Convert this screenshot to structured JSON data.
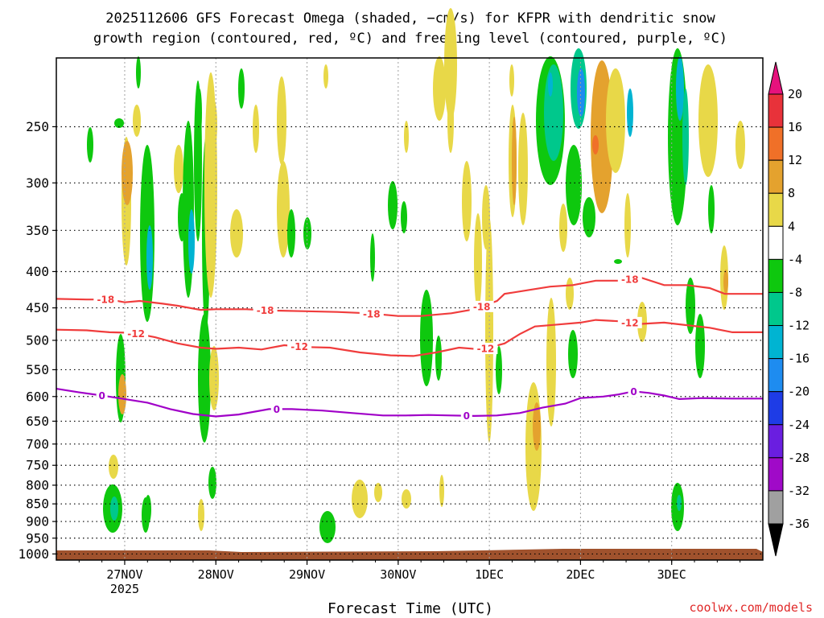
{
  "chart_data": {
    "type": "heatmap",
    "title_line1": "2025112606 GFS Forecast Omega (shaded, −cm/s) for KFPR with dendritic snow",
    "title_line2": "growth region (contoured, red, ºC) and freezing level (contoured, purple, ºC)",
    "xlabel": "Forecast Time (UTC)",
    "credit": "coolwx.com/models",
    "x_start_hours": 0,
    "x_end_hours": 186,
    "x_ticks": [
      {
        "hours": 18,
        "label": "27NOV",
        "sub": "2025"
      },
      {
        "hours": 42,
        "label": "28NOV",
        "sub": ""
      },
      {
        "hours": 66,
        "label": "29NOV",
        "sub": ""
      },
      {
        "hours": 90,
        "label": "30NOV",
        "sub": ""
      },
      {
        "hours": 114,
        "label": "1DEC",
        "sub": ""
      },
      {
        "hours": 138,
        "label": "2DEC",
        "sub": ""
      },
      {
        "hours": 162,
        "label": "3DEC",
        "sub": ""
      }
    ],
    "pressure_levels": [
      250,
      300,
      350,
      400,
      450,
      500,
      550,
      600,
      650,
      700,
      750,
      800,
      850,
      900,
      950,
      1000
    ],
    "pressure_labels": [
      "250",
      "300",
      "350",
      "400",
      "450",
      "500",
      "550",
      "600",
      "650",
      "700",
      "750",
      "800",
      "850",
      "900",
      "950",
      "1000"
    ],
    "p_top": 200,
    "p_bottom": 1020,
    "colorbar": {
      "labels": [
        "20",
        "16",
        "12",
        "8",
        "4",
        "-4",
        "-8",
        "-12",
        "-16",
        "-20",
        "-24",
        "-28",
        "-32",
        "-36"
      ],
      "bins": [
        {
          "lo": 16,
          "hi": 20,
          "color": "#e8323a"
        },
        {
          "lo": 12,
          "hi": 16,
          "color": "#f07028"
        },
        {
          "lo": 8,
          "hi": 12,
          "color": "#e4a22e"
        },
        {
          "lo": 4,
          "hi": 8,
          "color": "#e8d848"
        },
        {
          "lo": -4,
          "hi": 4,
          "color": "#ffffff"
        },
        {
          "lo": -8,
          "hi": -4,
          "color": "#0ec80e"
        },
        {
          "lo": -12,
          "hi": -8,
          "color": "#00c88c"
        },
        {
          "lo": -16,
          "hi": -12,
          "color": "#00b4d2"
        },
        {
          "lo": -20,
          "hi": -16,
          "color": "#1e8cf0"
        },
        {
          "lo": -24,
          "hi": -20,
          "color": "#1e3ce6"
        },
        {
          "lo": -28,
          "hi": -24,
          "color": "#6a1ee0"
        },
        {
          "lo": -32,
          "hi": -28,
          "color": "#a00ac8"
        },
        {
          "lo": -36,
          "hi": -32,
          "color": "#a0a0a0"
        }
      ],
      "top_arrow_color": "#e6127d",
      "bottom_arrow_color": "#000000"
    },
    "series": [
      {
        "name": "-18C isotherm",
        "color": "#f03c3c",
        "label": "-18",
        "label_at_hours": [
          13,
          55,
          83,
          112,
          151
        ],
        "points": [
          [
            0,
            437
          ],
          [
            8,
            438
          ],
          [
            14,
            438
          ],
          [
            18,
            442
          ],
          [
            22,
            440
          ],
          [
            28,
            444
          ],
          [
            32,
            447
          ],
          [
            38,
            453
          ],
          [
            42,
            452
          ],
          [
            50,
            452
          ],
          [
            58,
            454
          ],
          [
            66,
            455
          ],
          [
            74,
            456
          ],
          [
            82,
            458
          ],
          [
            90,
            462
          ],
          [
            96,
            462
          ],
          [
            104,
            458
          ],
          [
            110,
            452
          ],
          [
            116,
            440
          ],
          [
            118,
            430
          ],
          [
            124,
            425
          ],
          [
            130,
            420
          ],
          [
            136,
            418
          ],
          [
            142,
            412
          ],
          [
            148,
            412
          ],
          [
            154,
            408
          ],
          [
            160,
            418
          ],
          [
            166,
            418
          ],
          [
            172,
            422
          ],
          [
            176,
            430
          ],
          [
            186,
            430
          ]
        ]
      },
      {
        "name": "-12C isotherm",
        "color": "#f03c3c",
        "label": "-12",
        "label_at_hours": [
          21,
          64,
          113,
          151
        ],
        "points": [
          [
            0,
            483
          ],
          [
            8,
            484
          ],
          [
            14,
            487
          ],
          [
            20,
            488
          ],
          [
            26,
            495
          ],
          [
            32,
            505
          ],
          [
            38,
            512
          ],
          [
            42,
            514
          ],
          [
            48,
            512
          ],
          [
            54,
            515
          ],
          [
            60,
            508
          ],
          [
            66,
            511
          ],
          [
            72,
            512
          ],
          [
            80,
            520
          ],
          [
            88,
            525
          ],
          [
            94,
            526
          ],
          [
            100,
            520
          ],
          [
            106,
            512
          ],
          [
            112,
            515
          ],
          [
            118,
            505
          ],
          [
            122,
            490
          ],
          [
            126,
            478
          ],
          [
            132,
            475
          ],
          [
            138,
            472
          ],
          [
            142,
            468
          ],
          [
            148,
            470
          ],
          [
            154,
            474
          ],
          [
            160,
            472
          ],
          [
            166,
            476
          ],
          [
            172,
            480
          ],
          [
            178,
            487
          ],
          [
            186,
            487
          ]
        ]
      },
      {
        "name": "0C freezing level",
        "color": "#a000c8",
        "label": "0",
        "label_at_hours": [
          12,
          58,
          108,
          152
        ],
        "points": [
          [
            0,
            585
          ],
          [
            6,
            592
          ],
          [
            12,
            598
          ],
          [
            18,
            605
          ],
          [
            24,
            612
          ],
          [
            30,
            625
          ],
          [
            36,
            635
          ],
          [
            42,
            640
          ],
          [
            48,
            636
          ],
          [
            56,
            625
          ],
          [
            62,
            625
          ],
          [
            70,
            628
          ],
          [
            78,
            633
          ],
          [
            86,
            638
          ],
          [
            92,
            638
          ],
          [
            98,
            637
          ],
          [
            104,
            638
          ],
          [
            110,
            639
          ],
          [
            116,
            638
          ],
          [
            122,
            633
          ],
          [
            128,
            622
          ],
          [
            134,
            614
          ],
          [
            138,
            603
          ],
          [
            144,
            600
          ],
          [
            148,
            596
          ],
          [
            152,
            590
          ],
          [
            156,
            593
          ],
          [
            160,
            598
          ],
          [
            164,
            605
          ],
          [
            170,
            603
          ],
          [
            178,
            604
          ],
          [
            186,
            604
          ]
        ]
      }
    ],
    "terrain_color": "#a0522d"
  }
}
